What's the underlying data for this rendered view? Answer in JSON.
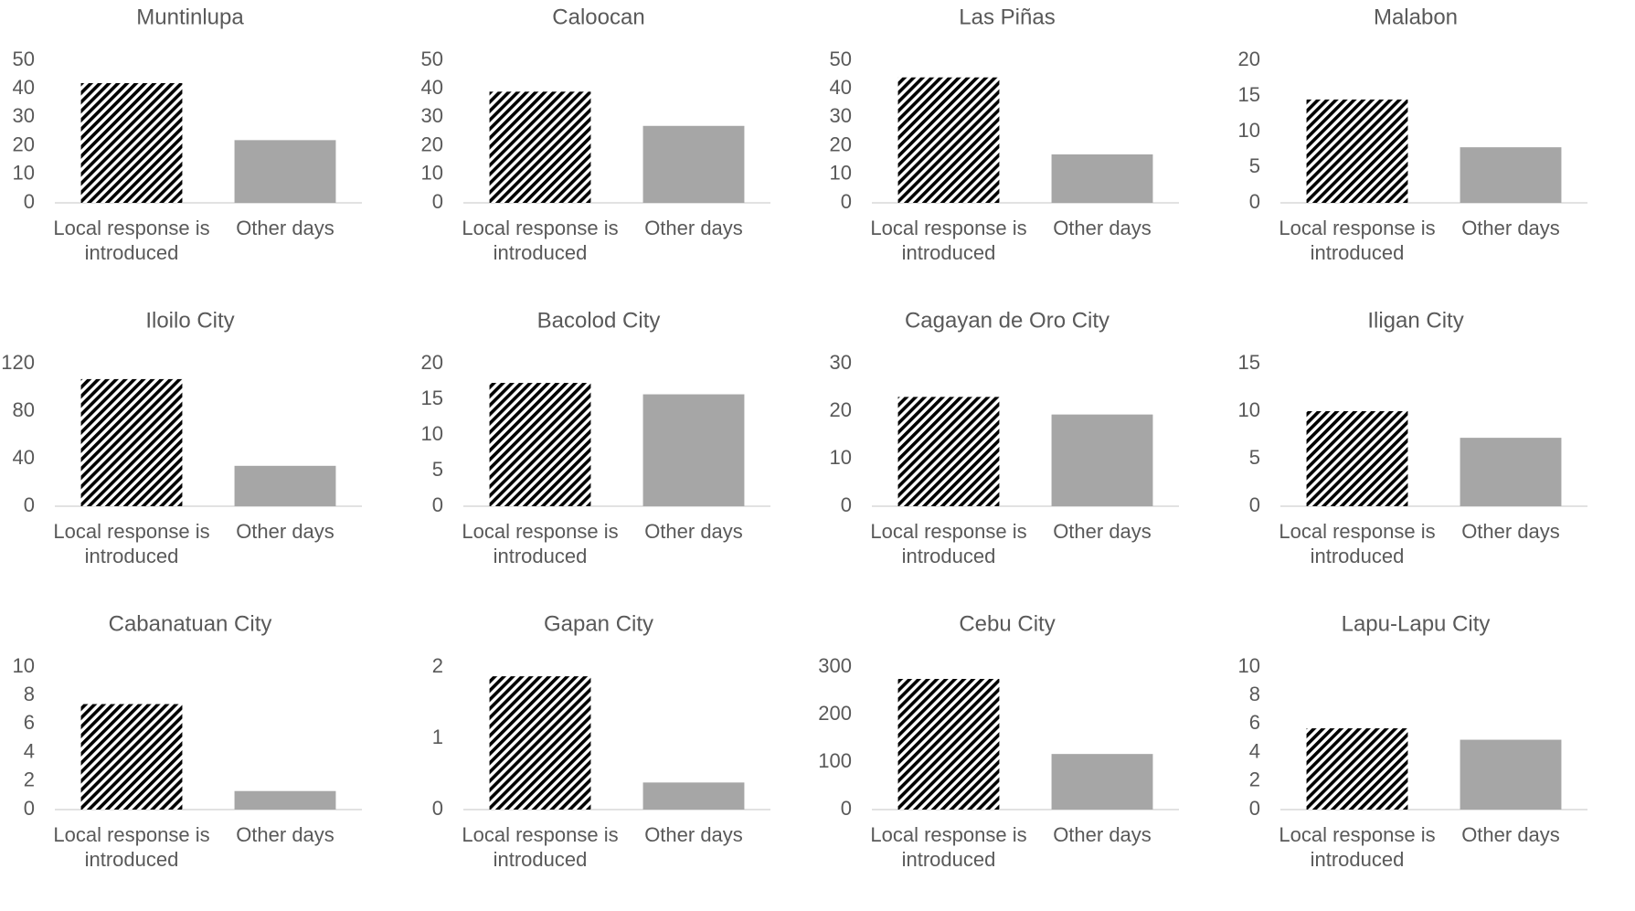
{
  "chart_data": [
    {
      "type": "bar",
      "title": "Muntinlupa",
      "categories": [
        "Local response is introduced",
        "Other days"
      ],
      "values": [
        42,
        22
      ],
      "colors": [
        "#000000",
        "#a6a6a6"
      ],
      "hatch": [
        true,
        false
      ],
      "ylim": [
        0,
        50
      ],
      "yticks": [
        0,
        10,
        20,
        30,
        40,
        50
      ]
    },
    {
      "type": "bar",
      "title": "Caloocan",
      "categories": [
        "Local response is introduced",
        "Other days"
      ],
      "values": [
        39,
        27
      ],
      "colors": [
        "#000000",
        "#a6a6a6"
      ],
      "hatch": [
        true,
        false
      ],
      "ylim": [
        0,
        50
      ],
      "yticks": [
        0,
        10,
        20,
        30,
        40,
        50
      ]
    },
    {
      "type": "bar",
      "title": "Las Piñas",
      "categories": [
        "Local response is introduced",
        "Other days"
      ],
      "values": [
        44,
        17
      ],
      "colors": [
        "#000000",
        "#a6a6a6"
      ],
      "hatch": [
        true,
        false
      ],
      "ylim": [
        0,
        50
      ],
      "yticks": [
        0,
        10,
        20,
        30,
        40,
        50
      ]
    },
    {
      "type": "bar",
      "title": "Malabon",
      "categories": [
        "Local response is introduced",
        "Other days"
      ],
      "values": [
        14.5,
        7.8
      ],
      "colors": [
        "#000000",
        "#a6a6a6"
      ],
      "hatch": [
        true,
        false
      ],
      "ylim": [
        0,
        20
      ],
      "yticks": [
        0,
        5,
        10,
        15,
        20
      ]
    },
    {
      "type": "bar",
      "title": "Iloilo City",
      "categories": [
        "Local response is introduced",
        "Other days"
      ],
      "values": [
        107,
        34
      ],
      "colors": [
        "#000000",
        "#a6a6a6"
      ],
      "hatch": [
        true,
        false
      ],
      "ylim": [
        0,
        120
      ],
      "yticks": [
        0,
        40,
        80,
        120
      ]
    },
    {
      "type": "bar",
      "title": "Bacolod City",
      "categories": [
        "Local response is introduced",
        "Other days"
      ],
      "values": [
        17.3,
        15.7
      ],
      "colors": [
        "#000000",
        "#a6a6a6"
      ],
      "hatch": [
        true,
        false
      ],
      "ylim": [
        0,
        20
      ],
      "yticks": [
        0,
        5,
        10,
        15,
        20
      ]
    },
    {
      "type": "bar",
      "title": "Cagayan de Oro City",
      "categories": [
        "Local response is introduced",
        "Other days"
      ],
      "values": [
        23,
        19.3
      ],
      "colors": [
        "#000000",
        "#a6a6a6"
      ],
      "hatch": [
        true,
        false
      ],
      "ylim": [
        0,
        30
      ],
      "yticks": [
        0,
        10,
        20,
        30
      ]
    },
    {
      "type": "bar",
      "title": "Iligan City",
      "categories": [
        "Local response is introduced",
        "Other days"
      ],
      "values": [
        10,
        7.2
      ],
      "colors": [
        "#000000",
        "#a6a6a6"
      ],
      "hatch": [
        true,
        false
      ],
      "ylim": [
        0,
        15
      ],
      "yticks": [
        0,
        5,
        10,
        15
      ]
    },
    {
      "type": "bar",
      "title": "Cabanatuan City",
      "categories": [
        "Local response is introduced",
        "Other days"
      ],
      "values": [
        7.4,
        1.3
      ],
      "colors": [
        "#000000",
        "#a6a6a6"
      ],
      "hatch": [
        true,
        false
      ],
      "ylim": [
        0,
        10
      ],
      "yticks": [
        0,
        2,
        4,
        6,
        8,
        10
      ]
    },
    {
      "type": "bar",
      "title": "Gapan City",
      "categories": [
        "Local response is introduced",
        "Other days"
      ],
      "values": [
        1.87,
        0.38
      ],
      "colors": [
        "#000000",
        "#a6a6a6"
      ],
      "hatch": [
        true,
        false
      ],
      "ylim": [
        0,
        2
      ],
      "yticks": [
        0,
        1,
        2
      ]
    },
    {
      "type": "bar",
      "title": "Cebu City",
      "categories": [
        "Local response is introduced",
        "Other days"
      ],
      "values": [
        275,
        117
      ],
      "colors": [
        "#000000",
        "#a6a6a6"
      ],
      "hatch": [
        true,
        false
      ],
      "ylim": [
        0,
        300
      ],
      "yticks": [
        0,
        100,
        200,
        300
      ]
    },
    {
      "type": "bar",
      "title": "Lapu-Lapu City",
      "categories": [
        "Local response is introduced",
        "Other days"
      ],
      "values": [
        5.7,
        4.9
      ],
      "colors": [
        "#000000",
        "#a6a6a6"
      ],
      "hatch": [
        true,
        false
      ],
      "ylim": [
        0,
        10
      ],
      "yticks": [
        0,
        2,
        4,
        6,
        8,
        10
      ]
    }
  ]
}
